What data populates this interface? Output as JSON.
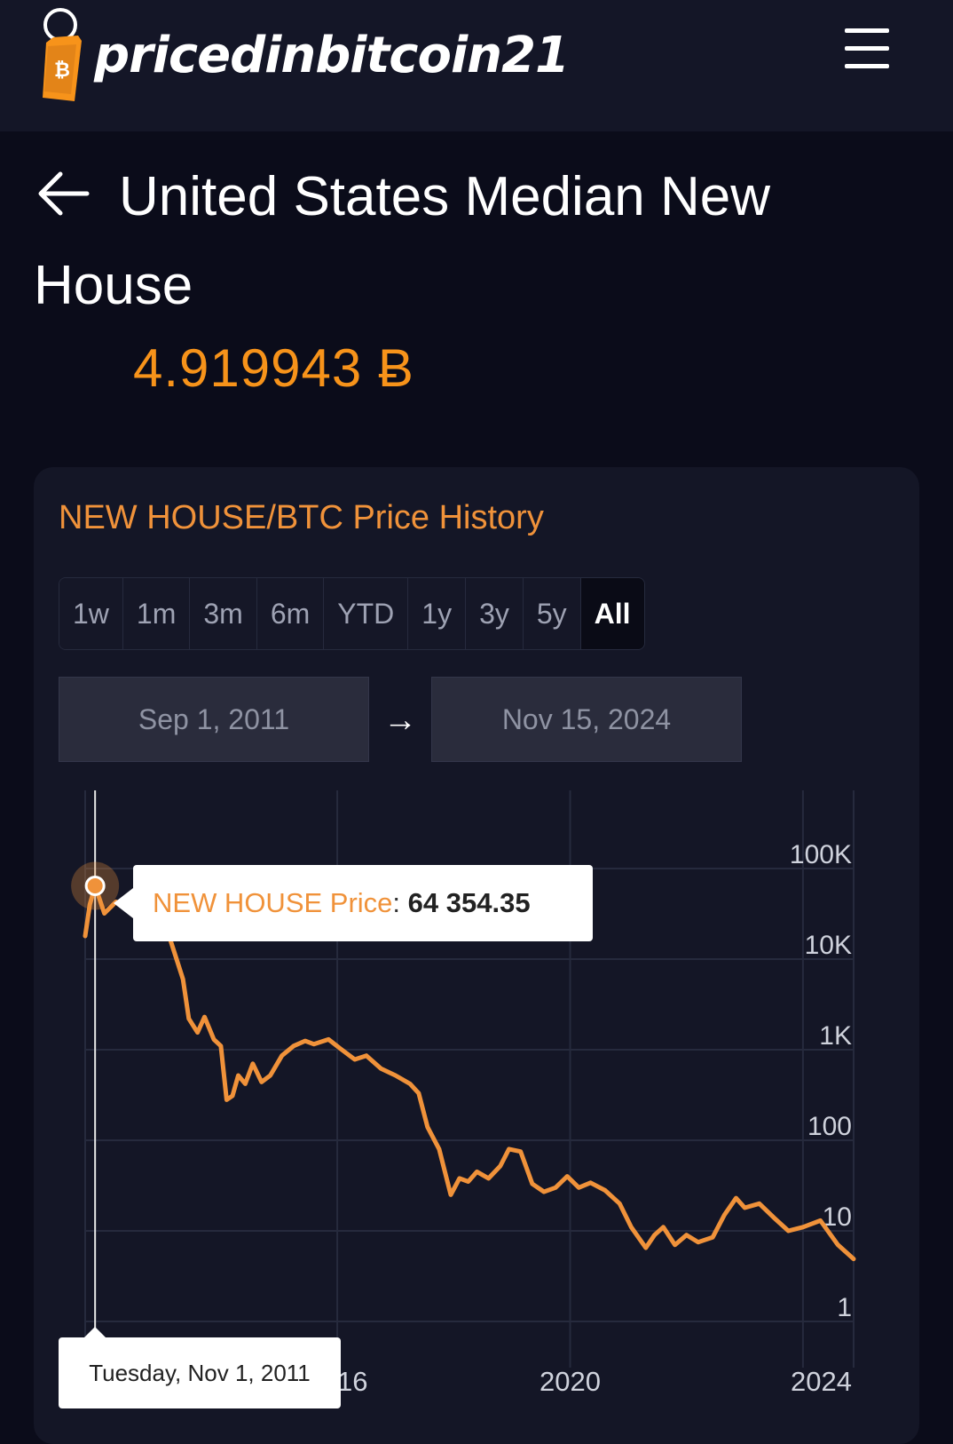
{
  "header": {
    "brand": "pricedinbitcoin21",
    "logo_icon": "bitcoin-price-tag-icon",
    "menu_icon": "hamburger-menu-icon"
  },
  "page": {
    "back_icon": "back-arrow-icon",
    "title": "United States Median New House",
    "price": "4.919943 Ƀ"
  },
  "card": {
    "title": "NEW HOUSE/BTC Price History",
    "ranges": [
      "1w",
      "1m",
      "3m",
      "6m",
      "YTD",
      "1y",
      "3y",
      "5y",
      "All"
    ],
    "active_range": "All",
    "date_from": "Sep 1, 2011",
    "date_to": "Nov 15, 2024",
    "date_arrow": "→"
  },
  "tooltip": {
    "series": "NEW HOUSE Price",
    "colon": ":",
    "value": "64 354.35",
    "date": "Tuesday, Nov 1, 2011"
  },
  "colors": {
    "accent": "#f7931a",
    "line": "#f0923a",
    "background": "#0b0c1a",
    "card": "#141626"
  },
  "chart_data": {
    "type": "line",
    "y_scale": "log",
    "ylim": [
      1,
      300000
    ],
    "y_ticks": [
      {
        "value": 1,
        "label": "1"
      },
      {
        "value": 10,
        "label": "10"
      },
      {
        "value": 100,
        "label": "100"
      },
      {
        "value": 1000,
        "label": "1K"
      },
      {
        "value": 10000,
        "label": "10K"
      },
      {
        "value": 100000,
        "label": "100K"
      }
    ],
    "x_ticks": [
      {
        "value": 2016,
        "label": "2016"
      },
      {
        "value": 2020,
        "label": "2020"
      },
      {
        "value": 2024,
        "label": "2024"
      }
    ],
    "xlim": [
      2011.67,
      2024.87
    ],
    "grid": true,
    "series": [
      {
        "name": "NEW HOUSE Price",
        "points": [
          [
            2011.67,
            18000
          ],
          [
            2011.75,
            40000
          ],
          [
            2011.84,
            64354.35
          ],
          [
            2012.0,
            32000
          ],
          [
            2012.2,
            43000
          ],
          [
            2012.45,
            35000
          ],
          [
            2012.75,
            38000
          ],
          [
            2012.95,
            21000
          ],
          [
            2013.1,
            19000
          ],
          [
            2013.25,
            9500
          ],
          [
            2013.35,
            6000
          ],
          [
            2013.45,
            2200
          ],
          [
            2013.6,
            1550
          ],
          [
            2013.72,
            2300
          ],
          [
            2013.88,
            1300
          ],
          [
            2014.0,
            1100
          ],
          [
            2014.1,
            280
          ],
          [
            2014.2,
            310
          ],
          [
            2014.3,
            520
          ],
          [
            2014.42,
            420
          ],
          [
            2014.55,
            700
          ],
          [
            2014.7,
            440
          ],
          [
            2014.85,
            520
          ],
          [
            2015.05,
            860
          ],
          [
            2015.25,
            1100
          ],
          [
            2015.45,
            1250
          ],
          [
            2015.6,
            1150
          ],
          [
            2015.85,
            1300
          ],
          [
            2016.05,
            1030
          ],
          [
            2016.3,
            780
          ],
          [
            2016.5,
            860
          ],
          [
            2016.75,
            620
          ],
          [
            2017.0,
            520
          ],
          [
            2017.25,
            420
          ],
          [
            2017.4,
            330
          ],
          [
            2017.55,
            140
          ],
          [
            2017.75,
            80
          ],
          [
            2017.95,
            25
          ],
          [
            2018.1,
            38
          ],
          [
            2018.25,
            35
          ],
          [
            2018.4,
            45
          ],
          [
            2018.6,
            38
          ],
          [
            2018.8,
            52
          ],
          [
            2018.95,
            80
          ],
          [
            2019.15,
            75
          ],
          [
            2019.35,
            33
          ],
          [
            2019.55,
            27
          ],
          [
            2019.75,
            30
          ],
          [
            2019.95,
            40
          ],
          [
            2020.15,
            30
          ],
          [
            2020.35,
            34
          ],
          [
            2020.6,
            28
          ],
          [
            2020.85,
            20
          ],
          [
            2021.05,
            11
          ],
          [
            2021.3,
            6.5
          ],
          [
            2021.45,
            9
          ],
          [
            2021.6,
            11
          ],
          [
            2021.8,
            7
          ],
          [
            2022.0,
            9
          ],
          [
            2022.2,
            7.5
          ],
          [
            2022.45,
            8.5
          ],
          [
            2022.65,
            15
          ],
          [
            2022.85,
            23
          ],
          [
            2023.0,
            18
          ],
          [
            2023.25,
            20
          ],
          [
            2023.5,
            14
          ],
          [
            2023.75,
            10
          ],
          [
            2024.0,
            11
          ],
          [
            2024.3,
            13
          ],
          [
            2024.6,
            7
          ],
          [
            2024.87,
            4.9
          ]
        ]
      }
    ]
  }
}
